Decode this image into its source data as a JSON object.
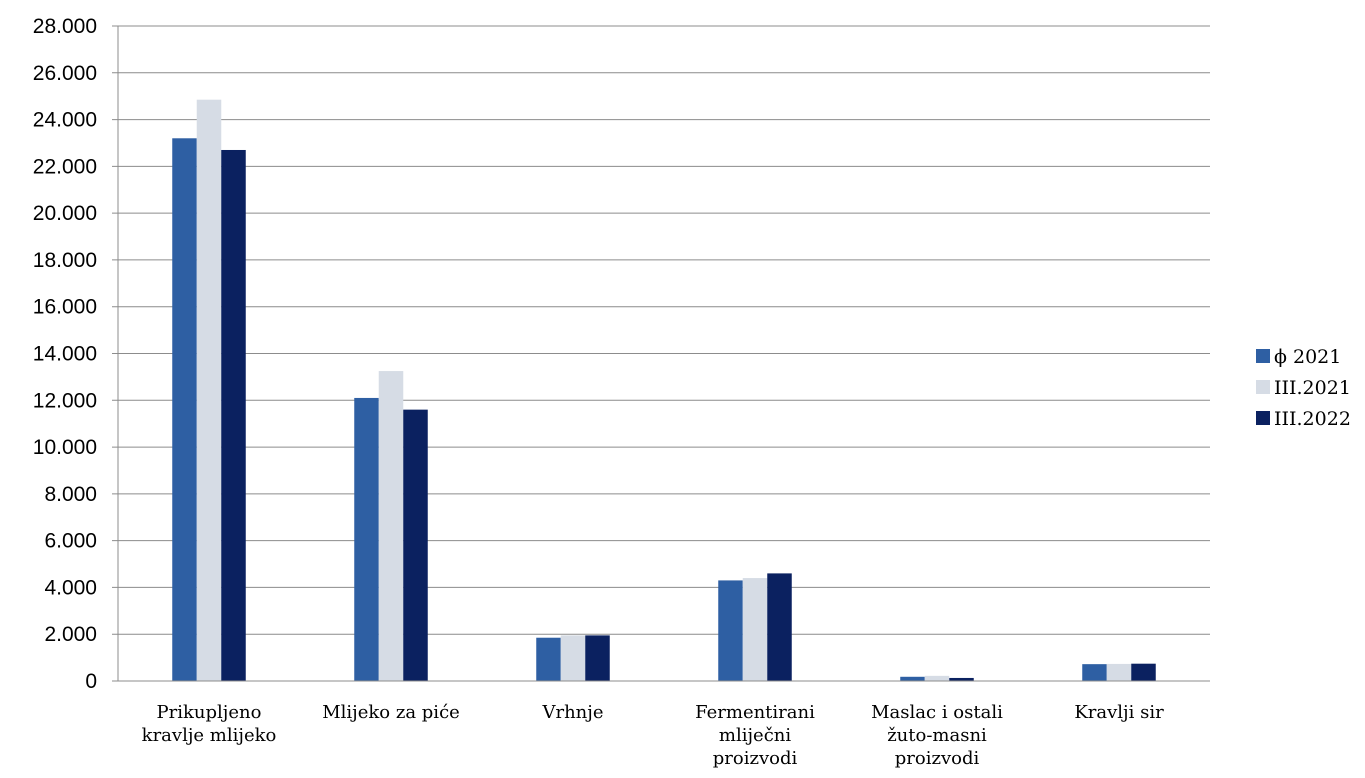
{
  "chart_data": {
    "type": "bar",
    "categories": [
      [
        "Prikupljeno",
        "kravlje mlijeko"
      ],
      [
        "Mlijeko za piće"
      ],
      [
        "Vrhnje"
      ],
      [
        "Fermentirani",
        "mliječni",
        "proizvodi"
      ],
      [
        "Maslac i ostali",
        "žuto-masni",
        "proizvodi"
      ],
      [
        "Kravlji sir"
      ]
    ],
    "series": [
      {
        "name": "ϕ 2021",
        "color": "#2E5FA3",
        "values": [
          23200,
          12100,
          1850,
          4300,
          180,
          720
        ]
      },
      {
        "name": "III.2021",
        "color": "#D6DCE5",
        "values": [
          24850,
          13250,
          1950,
          4400,
          220,
          730
        ]
      },
      {
        "name": "III.2022",
        "color": "#0B2160",
        "values": [
          22700,
          11600,
          1950,
          4600,
          130,
          740
        ]
      }
    ],
    "ylim": [
      0,
      28000
    ],
    "ystep": 2000,
    "yticks": [
      "0",
      "2.000",
      "4.000",
      "6.000",
      "8.000",
      "10.000",
      "12.000",
      "14.000",
      "16.000",
      "18.000",
      "20.000",
      "22.000",
      "24.000",
      "26.000",
      "28.000"
    ],
    "grid": true,
    "legend_position": "right"
  }
}
